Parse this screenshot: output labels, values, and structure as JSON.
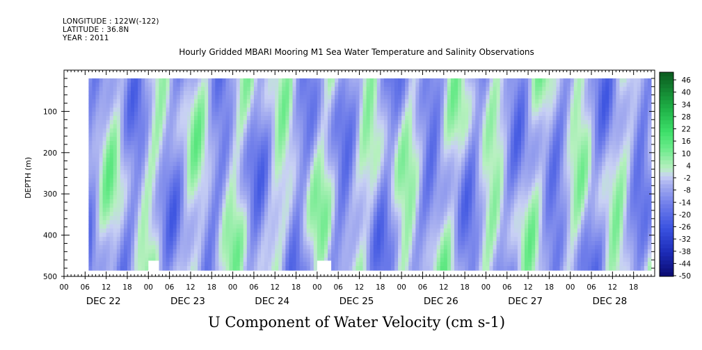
{
  "header": {
    "longitude": "LONGITUDE : 122W(-122)",
    "latitude": "LATITUDE : 36.8N",
    "year": "YEAR : 2011",
    "title": "Hourly Gridded MBARI Mooring M1 Sea Water Temperature and Salinity Observations"
  },
  "variable_title": "U Component of Water Velocity (cm s-1)",
  "colors": {
    "strong_positive": "#0a5a1e",
    "positive": "#3ee06a",
    "near_zero_pos": "#b8f0c0",
    "near_zero_neg": "#b0b8f0",
    "negative": "#6a78e8",
    "strong_negative": "#0a0a70",
    "mask": "#ffffff"
  },
  "chart_data": {
    "type": "heatmap",
    "title": "Hourly Gridded MBARI Mooring M1 Sea Water Temperature and Salinity Observations",
    "ylabel": "DEPTH (m)",
    "colorbar_label": "U Component of Water Velocity (cm s-1)",
    "ylim": [
      500,
      0
    ],
    "y_ticks": [
      100,
      200,
      300,
      400,
      500
    ],
    "data_depth_range": [
      20,
      485
    ],
    "x_hour_ticks": [
      "00",
      "06",
      "12",
      "18",
      "00",
      "06",
      "12",
      "18",
      "00",
      "06",
      "12",
      "18",
      "00",
      "06",
      "12",
      "18",
      "00",
      "06",
      "12",
      "18",
      "00",
      "06",
      "12",
      "18",
      "00",
      "06",
      "12",
      "18"
    ],
    "x_day_labels": [
      "DEC 22",
      "DEC 23",
      "DEC 24",
      "DEC 25",
      "DEC 26",
      "DEC 27",
      "DEC 28"
    ],
    "x_range": [
      "DEC 22 00:00",
      "DEC 28 23:59"
    ],
    "data_time_range": [
      "DEC 22 07:00",
      "DEC 28 23:00"
    ],
    "colorbar_levels": [
      46,
      40,
      34,
      28,
      22,
      16,
      10,
      4,
      -2,
      -8,
      -14,
      -20,
      -26,
      -32,
      -38,
      -44,
      -50
    ],
    "colorbar_range": [
      -50,
      52
    ],
    "value_range_observed": [
      -30,
      20
    ],
    "missing_data_patches": [
      {
        "time_start": "DEC 23 00:00",
        "time_end": "DEC 23 03:00",
        "depth_top": 462
      },
      {
        "time_start": "DEC 25 00:00",
        "time_end": "DEC 25 04:00",
        "depth_top": 462
      }
    ]
  }
}
